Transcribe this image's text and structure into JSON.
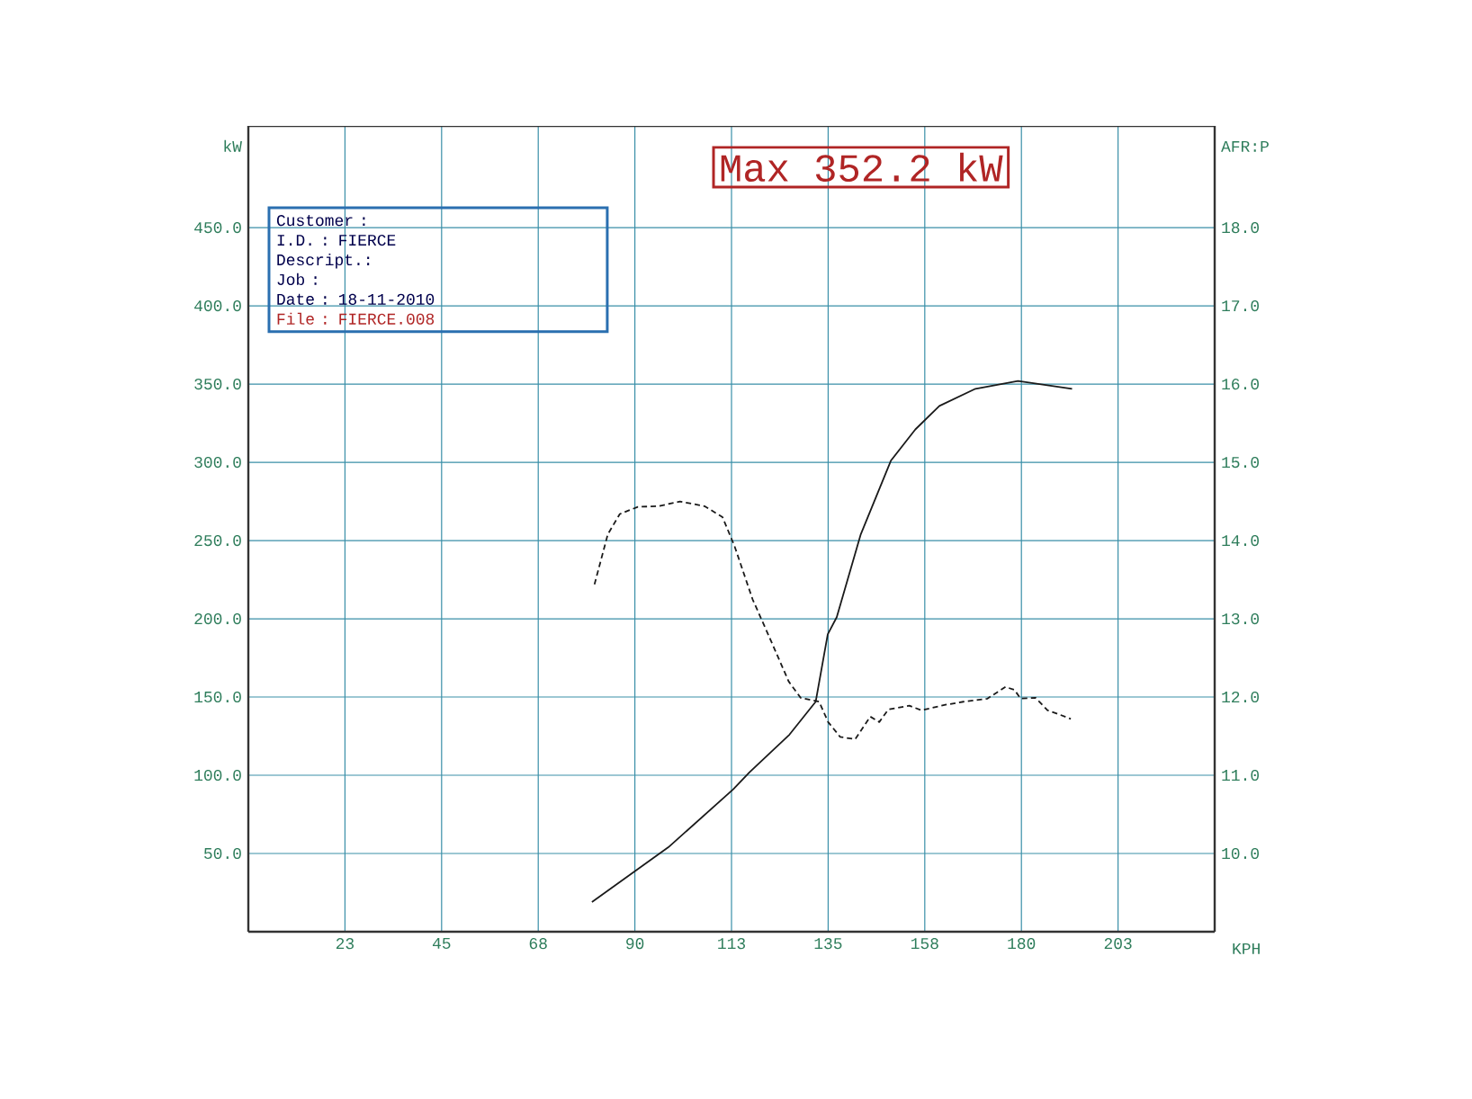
{
  "chart_data": {
    "type": "line",
    "xlabel": "KPH",
    "ylabel": "kW",
    "y2label": "AFR:P",
    "xlim": [
      0,
      225
    ],
    "ylim": [
      0,
      515
    ],
    "y2lim": [
      9,
      19.3
    ],
    "xticks": [
      {
        "value": 22.5,
        "label": "23"
      },
      {
        "value": 45,
        "label": "45"
      },
      {
        "value": 67.5,
        "label": "68"
      },
      {
        "value": 90,
        "label": "90"
      },
      {
        "value": 112.5,
        "label": "113"
      },
      {
        "value": 135,
        "label": "135"
      },
      {
        "value": 157.5,
        "label": "158"
      },
      {
        "value": 180,
        "label": "180"
      },
      {
        "value": 202.5,
        "label": "203"
      }
    ],
    "yticks": [
      {
        "value": 50,
        "label": "50.0"
      },
      {
        "value": 100,
        "label": "100.0"
      },
      {
        "value": 150,
        "label": "150.0"
      },
      {
        "value": 200,
        "label": "200.0"
      },
      {
        "value": 250,
        "label": "250.0"
      },
      {
        "value": 300,
        "label": "300.0"
      },
      {
        "value": 350,
        "label": "350.0"
      },
      {
        "value": 400,
        "label": "400.0"
      },
      {
        "value": 450,
        "label": "450.0"
      }
    ],
    "y2ticks": [
      {
        "value": 10,
        "label": "10.0"
      },
      {
        "value": 11,
        "label": "11.0"
      },
      {
        "value": 12,
        "label": "12.0"
      },
      {
        "value": 13,
        "label": "13.0"
      },
      {
        "value": 14,
        "label": "14.0"
      },
      {
        "value": 15,
        "label": "15.0"
      },
      {
        "value": 16,
        "label": "16.0"
      },
      {
        "value": 17,
        "label": "17.0"
      },
      {
        "value": 18,
        "label": "18.0"
      }
    ],
    "grid": true,
    "series": [
      {
        "color": "#1a1a1a",
        "line_style": "solid",
        "x": [
          80.0,
          97.8,
          112.9,
          116.7,
          126.0,
          132.1,
          134.9,
          137.0,
          142.6,
          149.6,
          155.3,
          160.9,
          169.3,
          179.2,
          191.8
        ],
        "values": [
          19,
          54,
          91,
          102,
          126,
          147,
          190,
          201,
          254,
          301,
          321,
          336,
          347,
          352,
          347
        ]
      },
      {
        "color": "#1a1a1a",
        "line_style": "dashed",
        "axis": "y2",
        "x": [
          80.6,
          83.7,
          86.5,
          90.7,
          95.6,
          100.5,
          106.2,
          110.4,
          113.2,
          117.4,
          121.6,
          125.8,
          128.6,
          132.9,
          135.0,
          137.8,
          141.3,
          144.8,
          146.9,
          149.0,
          153.9,
          156.7,
          162.3,
          166.5,
          172.1,
          176.3,
          178.4,
          179.8,
          183.3,
          186.1,
          188.2,
          191.5
        ],
        "values": [
          13.44,
          14.08,
          14.34,
          14.43,
          14.44,
          14.5,
          14.44,
          14.3,
          13.93,
          13.25,
          12.73,
          12.2,
          11.99,
          11.94,
          11.68,
          11.49,
          11.46,
          11.75,
          11.68,
          11.84,
          11.89,
          11.83,
          11.9,
          11.94,
          11.98,
          12.13,
          12.09,
          11.98,
          11.99,
          11.83,
          11.79,
          11.72
        ]
      }
    ],
    "annotations": [
      "Max 352.2 kW",
      "Customer :",
      "I.D. : FIERCE",
      "Descript.:",
      "Job :",
      "Date : 18-11-2010",
      "File : FIERCE.008"
    ]
  }
}
